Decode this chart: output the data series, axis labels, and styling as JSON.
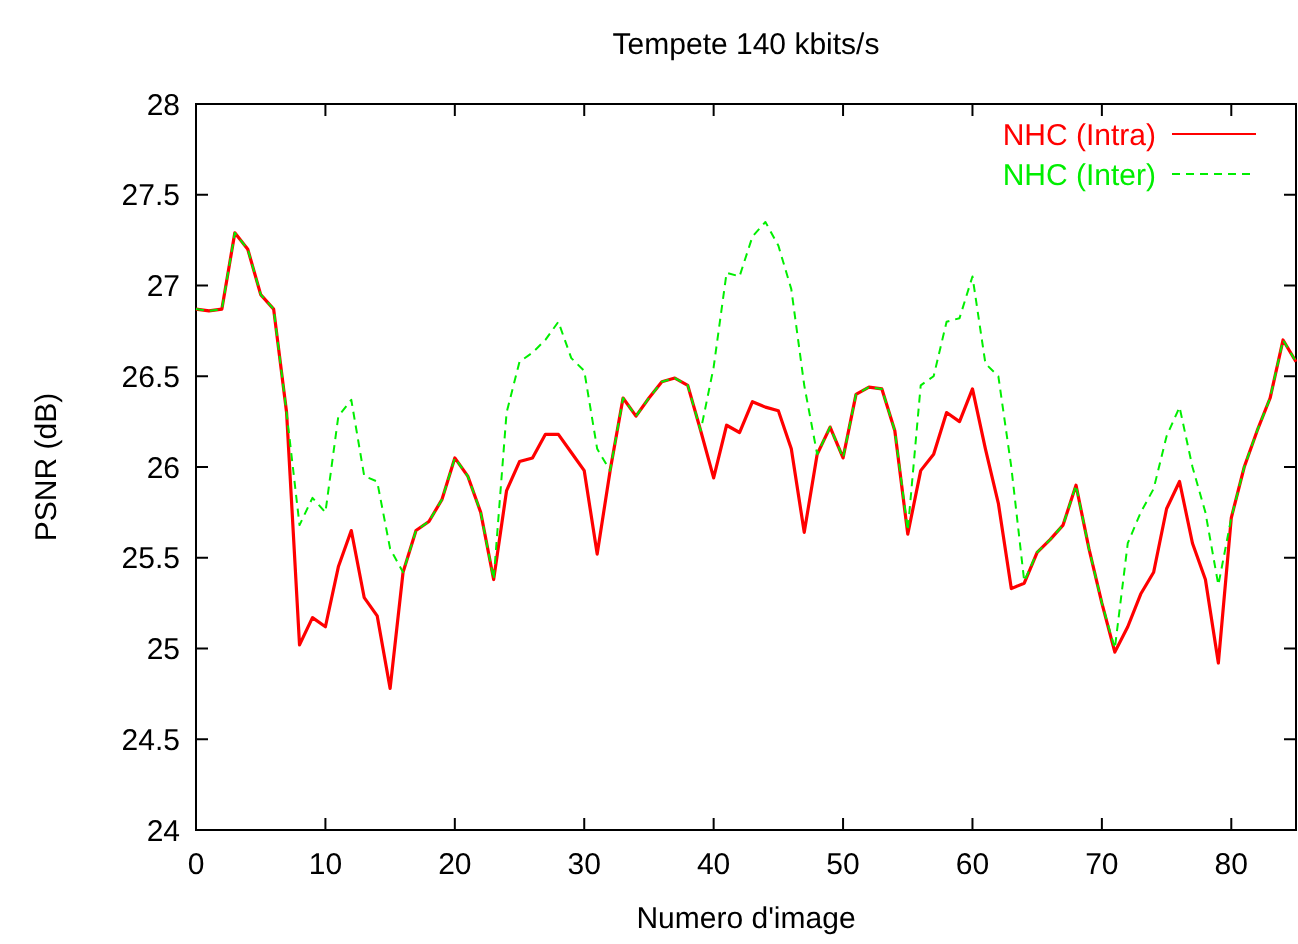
{
  "chart_data": {
    "type": "line",
    "title": "Tempete 140 kbits/s",
    "xlabel": "Numero d'image",
    "ylabel": "PSNR (dB)",
    "x": [
      0,
      1,
      2,
      3,
      4,
      5,
      6,
      7,
      8,
      9,
      10,
      11,
      12,
      13,
      14,
      15,
      16,
      17,
      18,
      19,
      20,
      21,
      22,
      23,
      24,
      25,
      26,
      27,
      28,
      29,
      30,
      31,
      32,
      33,
      34,
      35,
      36,
      37,
      38,
      39,
      40,
      41,
      42,
      43,
      44,
      45,
      46,
      47,
      48,
      49,
      50,
      51,
      52,
      53,
      54,
      55,
      56,
      57,
      58,
      59,
      60,
      61,
      62,
      63,
      64,
      65,
      66,
      67,
      68,
      69,
      70,
      71,
      72,
      73,
      74,
      75,
      76,
      77,
      78,
      79,
      80,
      81,
      82,
      83,
      84,
      85
    ],
    "xlim": [
      0,
      85
    ],
    "xticks": [
      0,
      10,
      20,
      30,
      40,
      50,
      60,
      70,
      80
    ],
    "ylim": [
      24,
      28
    ],
    "yticks": [
      24,
      24.5,
      25,
      25.5,
      26,
      26.5,
      27,
      27.5,
      28
    ],
    "grid": false,
    "legend": "top right",
    "marker": "none",
    "series": [
      {
        "name": "NHC (Intra)",
        "color": "#ff0000",
        "line_style": "solid",
        "values": [
          26.87,
          26.86,
          26.87,
          27.29,
          27.2,
          26.95,
          26.87,
          26.3,
          25.02,
          25.17,
          25.12,
          25.45,
          25.65,
          25.28,
          25.18,
          24.78,
          25.42,
          25.65,
          25.7,
          25.82,
          26.05,
          25.95,
          25.75,
          25.38,
          25.87,
          26.03,
          26.05,
          26.18,
          26.18,
          26.08,
          25.98,
          25.52,
          25.98,
          26.38,
          26.28,
          26.38,
          26.47,
          26.49,
          26.45,
          26.2,
          25.94,
          26.23,
          26.19,
          26.36,
          26.33,
          26.31,
          26.1,
          25.64,
          26.07,
          26.22,
          26.05,
          26.4,
          26.44,
          26.43,
          26.2,
          25.63,
          25.98,
          26.07,
          26.3,
          26.25,
          26.43,
          26.1,
          25.8,
          25.33,
          25.36,
          25.53,
          25.6,
          25.68,
          25.9,
          25.55,
          25.25,
          24.98,
          25.12,
          25.3,
          25.42,
          25.77,
          25.92,
          25.58,
          25.38,
          24.92,
          25.72,
          26.0,
          26.2,
          26.38,
          26.7,
          26.58
        ]
      },
      {
        "name": "NHC (Inter)",
        "color": "#00ee00",
        "line_style": "dashed",
        "values": [
          26.87,
          26.86,
          26.87,
          27.29,
          27.2,
          26.95,
          26.87,
          26.3,
          25.68,
          25.83,
          25.75,
          26.28,
          26.37,
          25.95,
          25.92,
          25.55,
          25.42,
          25.65,
          25.7,
          25.82,
          26.05,
          25.95,
          25.75,
          25.38,
          26.3,
          26.58,
          26.63,
          26.7,
          26.8,
          26.6,
          26.53,
          26.1,
          25.98,
          26.38,
          26.28,
          26.38,
          26.47,
          26.49,
          26.45,
          26.2,
          26.55,
          27.07,
          27.05,
          27.27,
          27.35,
          27.22,
          26.98,
          26.45,
          26.07,
          26.22,
          26.05,
          26.4,
          26.44,
          26.43,
          26.2,
          25.65,
          26.45,
          26.5,
          26.8,
          26.82,
          27.05,
          26.57,
          26.5,
          26.0,
          25.37,
          25.53,
          25.6,
          25.68,
          25.9,
          25.55,
          25.25,
          25.0,
          25.58,
          25.75,
          25.88,
          26.17,
          26.33,
          26.0,
          25.75,
          25.35,
          25.72,
          26.0,
          26.2,
          26.38,
          26.7,
          26.58
        ]
      }
    ]
  }
}
